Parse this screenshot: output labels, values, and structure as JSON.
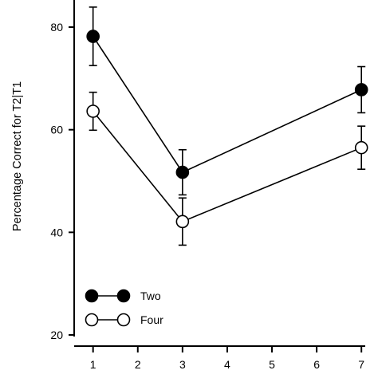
{
  "chart_data": {
    "type": "line",
    "title": "",
    "xlabel": "",
    "ylabel": "Percentage Correct for T2|T1",
    "x_ticks": [
      1,
      2,
      3,
      4,
      5,
      6,
      7
    ],
    "y_ticks": [
      20,
      40,
      60,
      80
    ],
    "xlim": [
      0.97,
      7.05
    ],
    "ylim": [
      20,
      85
    ],
    "grid": false,
    "legend_position": "bottom-left",
    "series": [
      {
        "name": "Two",
        "marker_fill": "#000000",
        "x": [
          1,
          3,
          7
        ],
        "y": [
          78.2,
          51.7,
          67.8
        ],
        "error": [
          5.7,
          4.4,
          4.5
        ]
      },
      {
        "name": "Four",
        "marker_fill": "#ffffff",
        "x": [
          1,
          3,
          7
        ],
        "y": [
          63.6,
          42.1,
          56.5
        ],
        "error": [
          3.7,
          4.6,
          4.2
        ]
      }
    ]
  }
}
